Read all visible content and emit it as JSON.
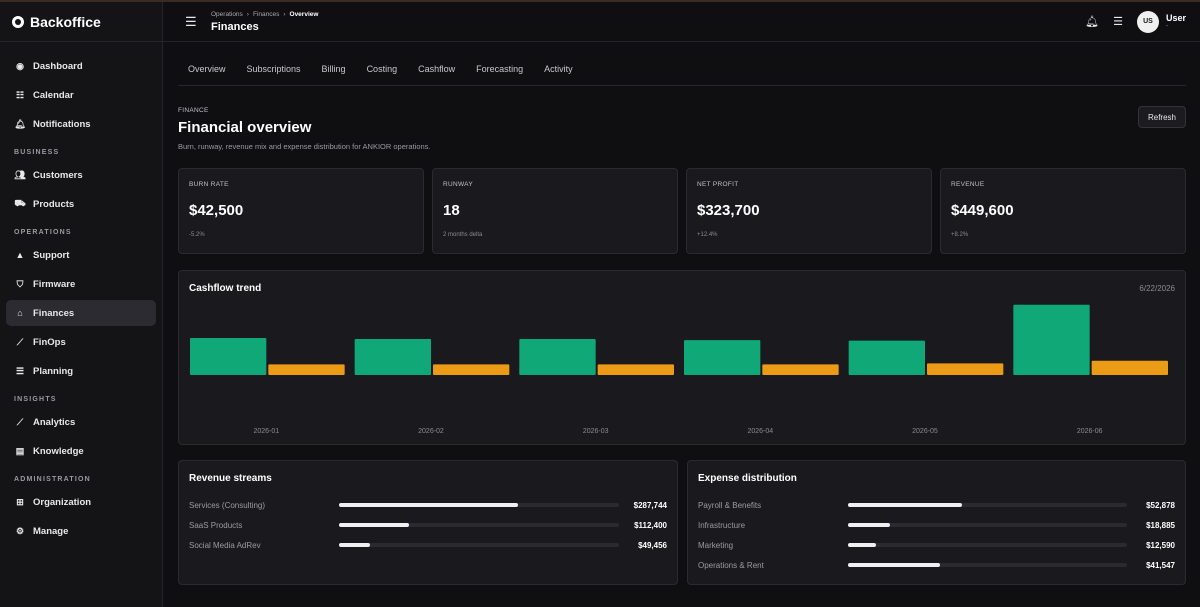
{
  "brand": "Backoffice",
  "nav": {
    "top": [
      {
        "label": "Dashboard",
        "icon": "dashboard-icon"
      },
      {
        "label": "Calendar",
        "icon": "calendar-icon"
      },
      {
        "label": "Notifications",
        "icon": "bell-icon"
      }
    ],
    "business_title": "BUSINESS",
    "business": [
      {
        "label": "Customers",
        "icon": "users-icon"
      },
      {
        "label": "Products",
        "icon": "truck-icon"
      }
    ],
    "operations_title": "OPERATIONS",
    "operations": [
      {
        "label": "Support",
        "icon": "warning-icon"
      },
      {
        "label": "Firmware",
        "icon": "shield-icon"
      },
      {
        "label": "Finances",
        "icon": "bank-icon",
        "active": true
      },
      {
        "label": "FinOps",
        "icon": "chart-line-icon"
      },
      {
        "label": "Planning",
        "icon": "list-icon"
      }
    ],
    "insights_title": "INSIGHTS",
    "insights": [
      {
        "label": "Analytics",
        "icon": "chart-line-icon"
      },
      {
        "label": "Knowledge",
        "icon": "document-icon"
      }
    ],
    "administration_title": "ADMINISTRATION",
    "administration": [
      {
        "label": "Organization",
        "icon": "org-icon"
      },
      {
        "label": "Manage",
        "icon": "user-gear-icon"
      }
    ]
  },
  "topbar": {
    "breadcrumb": [
      "Operations",
      "Finances",
      "Overview"
    ],
    "page_title": "Finances",
    "user": {
      "initials": "US",
      "name": "User",
      "sub": "-"
    }
  },
  "tabs": [
    "Overview",
    "Subscriptions",
    "Billing",
    "Costing",
    "Cashflow",
    "Forecasting",
    "Activity"
  ],
  "header": {
    "eyebrow": "FINANCE",
    "title": "Financial overview",
    "subtitle": "Burn, runway, revenue mix and expense distribution for ANKIOR operations.",
    "refresh_label": "Refresh"
  },
  "kpis": [
    {
      "label": "BURN RATE",
      "value": "$42,500",
      "delta": "-5.2%"
    },
    {
      "label": "RUNWAY",
      "value": "18",
      "delta": "2 months delta"
    },
    {
      "label": "NET PROFIT",
      "value": "$323,700",
      "delta": "+12.4%"
    },
    {
      "label": "REVENUE",
      "value": "$449,600",
      "delta": "+8.2%"
    }
  ],
  "cashflow": {
    "title": "Cashflow trend",
    "date": "6/22/2026"
  },
  "chart_data": {
    "type": "bar",
    "categories": [
      "2026-01",
      "2026-02",
      "2026-03",
      "2026-04",
      "2026-05",
      "2026-06"
    ],
    "series": [
      {
        "values": [
          70000,
          68000,
          68000,
          66000,
          65000,
          133000
        ],
        "color": "#10a876"
      },
      {
        "values": [
          20000,
          20000,
          20000,
          20000,
          22000,
          27000
        ],
        "color": "#eb9b16"
      }
    ],
    "ylim": [
      0,
      140000
    ]
  },
  "revenue": {
    "title": "Revenue streams",
    "rows": [
      {
        "label": "Services (Consulting)",
        "value": "$287,744",
        "fraction": 0.64
      },
      {
        "label": "SaaS Products",
        "value": "$112,400",
        "fraction": 0.25
      },
      {
        "label": "Social Media AdRev",
        "value": "$49,456",
        "fraction": 0.11
      }
    ]
  },
  "expenses": {
    "title": "Expense distribution",
    "rows": [
      {
        "label": "Payroll & Benefits",
        "value": "$52,878",
        "fraction": 0.41
      },
      {
        "label": "Infrastructure",
        "value": "$18,885",
        "fraction": 0.15
      },
      {
        "label": "Marketing",
        "value": "$12,590",
        "fraction": 0.1
      },
      {
        "label": "Operations & Rent",
        "value": "$41,547",
        "fraction": 0.33
      }
    ]
  }
}
